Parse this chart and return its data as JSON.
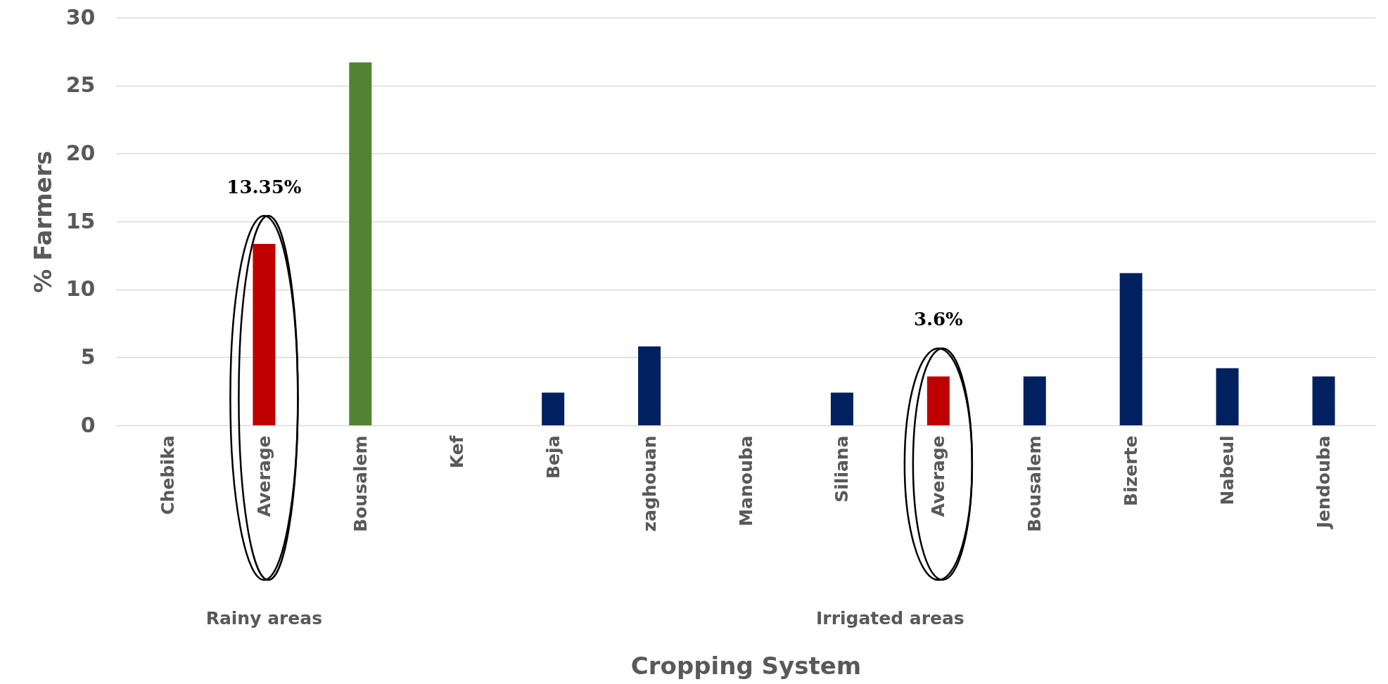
{
  "chart_data": {
    "type": "bar",
    "xlabel": "Cropping System",
    "ylabel": "% Farmers",
    "categories": [
      "Chebika",
      "Average",
      "Bousalem",
      "Kef",
      "Beja",
      "zaghouan",
      "Manouba",
      "Siliana",
      "Average",
      "Bousalem",
      "Bizerte",
      "Nabeul",
      "Jendouba"
    ],
    "values": [
      0,
      13.35,
      26.7,
      0,
      2.4,
      5.8,
      0,
      2.4,
      3.6,
      3.6,
      11.2,
      4.2,
      3.6
    ],
    "colors": [
      "#002060",
      "#c00000",
      "#548235",
      "#002060",
      "#002060",
      "#002060",
      "#002060",
      "#002060",
      "#c00000",
      "#002060",
      "#002060",
      "#002060",
      "#002060"
    ],
    "value_labels": [
      null,
      "13.35%",
      null,
      null,
      null,
      null,
      null,
      null,
      "3.6%",
      null,
      null,
      null,
      null
    ],
    "annotations": [
      "Rainy areas",
      "Irrigated areas"
    ],
    "ylim": [
      0,
      30
    ],
    "yticks": [
      0,
      5,
      10,
      15,
      20,
      25,
      30
    ],
    "grid": "y"
  }
}
